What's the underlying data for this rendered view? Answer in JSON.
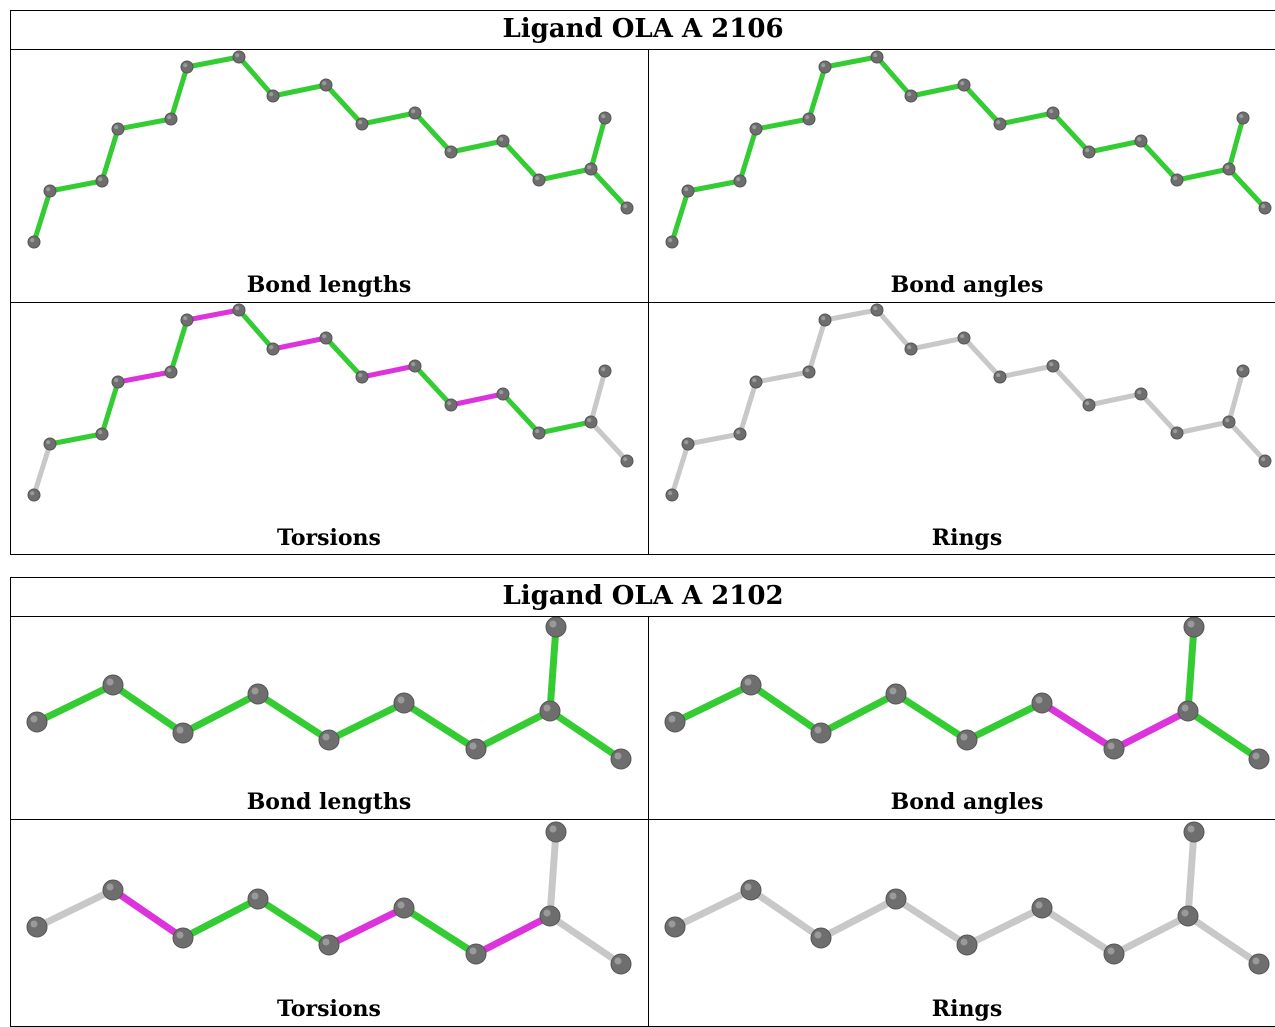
{
  "tables": [
    {
      "title": "Ligand OLA A 2106",
      "panels": [
        {
          "caption": "Bond lengths"
        },
        {
          "caption": "Bond angles"
        },
        {
          "caption": "Torsions"
        },
        {
          "caption": "Rings"
        }
      ]
    },
    {
      "title": "Ligand OLA A 2102",
      "panels": [
        {
          "caption": "Bond lengths"
        },
        {
          "caption": "Bond angles"
        },
        {
          "caption": "Torsions"
        },
        {
          "caption": "Rings"
        }
      ]
    }
  ],
  "colors": {
    "ok_bond": "#33cc33",
    "outlier_bond": "#dd33dd",
    "neutral_bond": "#c8c8c8",
    "atom": "#6e6e6e",
    "border": "#000000"
  }
}
